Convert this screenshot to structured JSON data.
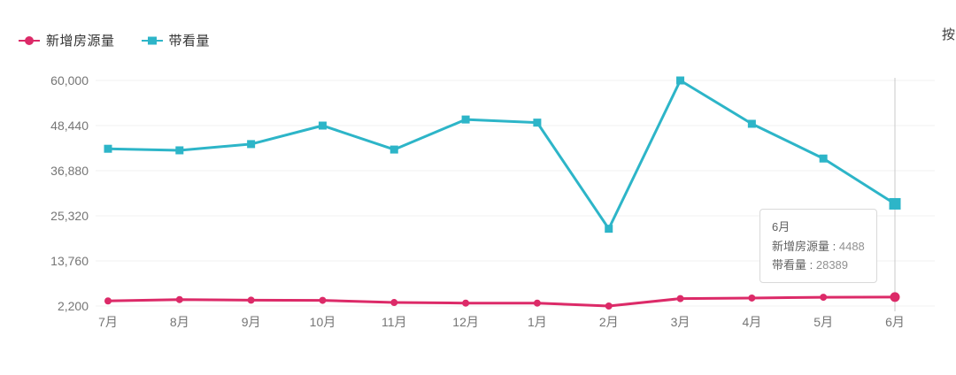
{
  "header": {
    "corner_text": "按"
  },
  "legend": {
    "items": [
      {
        "label": "新增房源量",
        "color": "#dc2a68",
        "marker": "circle"
      },
      {
        "label": "带看量",
        "color": "#2db5c8",
        "marker": "square"
      }
    ]
  },
  "tooltip": {
    "title": "6月",
    "separator": " : ",
    "rows": [
      {
        "label": "新增房源量",
        "value": "4488"
      },
      {
        "label": "带看量",
        "value": "28389"
      }
    ]
  },
  "colors": {
    "series_new_listings": "#dc2a68",
    "series_viewings": "#2db5c8",
    "grid_line": "#f0f0f0",
    "crosshair": "#c8c8c8",
    "axis_label": "#757575",
    "tooltip_border": "#d9d9d9"
  },
  "chart_data": {
    "type": "line",
    "categories": [
      "7月",
      "8月",
      "9月",
      "10月",
      "11月",
      "12月",
      "1月",
      "2月",
      "3月",
      "4月",
      "5月",
      "6月"
    ],
    "series": [
      {
        "name": "新增房源量",
        "color": "#dc2a68",
        "marker": "circle",
        "values": [
          3500,
          3850,
          3700,
          3650,
          3100,
          2950,
          2950,
          2200,
          4100,
          4250,
          4450,
          4488
        ]
      },
      {
        "name": "带看量",
        "color": "#2db5c8",
        "marker": "square",
        "values": [
          42500,
          42100,
          43700,
          48440,
          42300,
          50000,
          49200,
          22000,
          60000,
          48900,
          40000,
          28389
        ]
      }
    ],
    "xlabel": "",
    "ylabel": "",
    "ylim": [
      2200,
      60000
    ],
    "yticks": [
      2200,
      13760,
      25320,
      36880,
      48440,
      60000
    ],
    "ytick_labels": [
      "2,200",
      "13,760",
      "25,320",
      "36,880",
      "48,440",
      "60,000"
    ],
    "grid": true,
    "legend_position": "top-left",
    "highlighted_category_index": 11
  }
}
